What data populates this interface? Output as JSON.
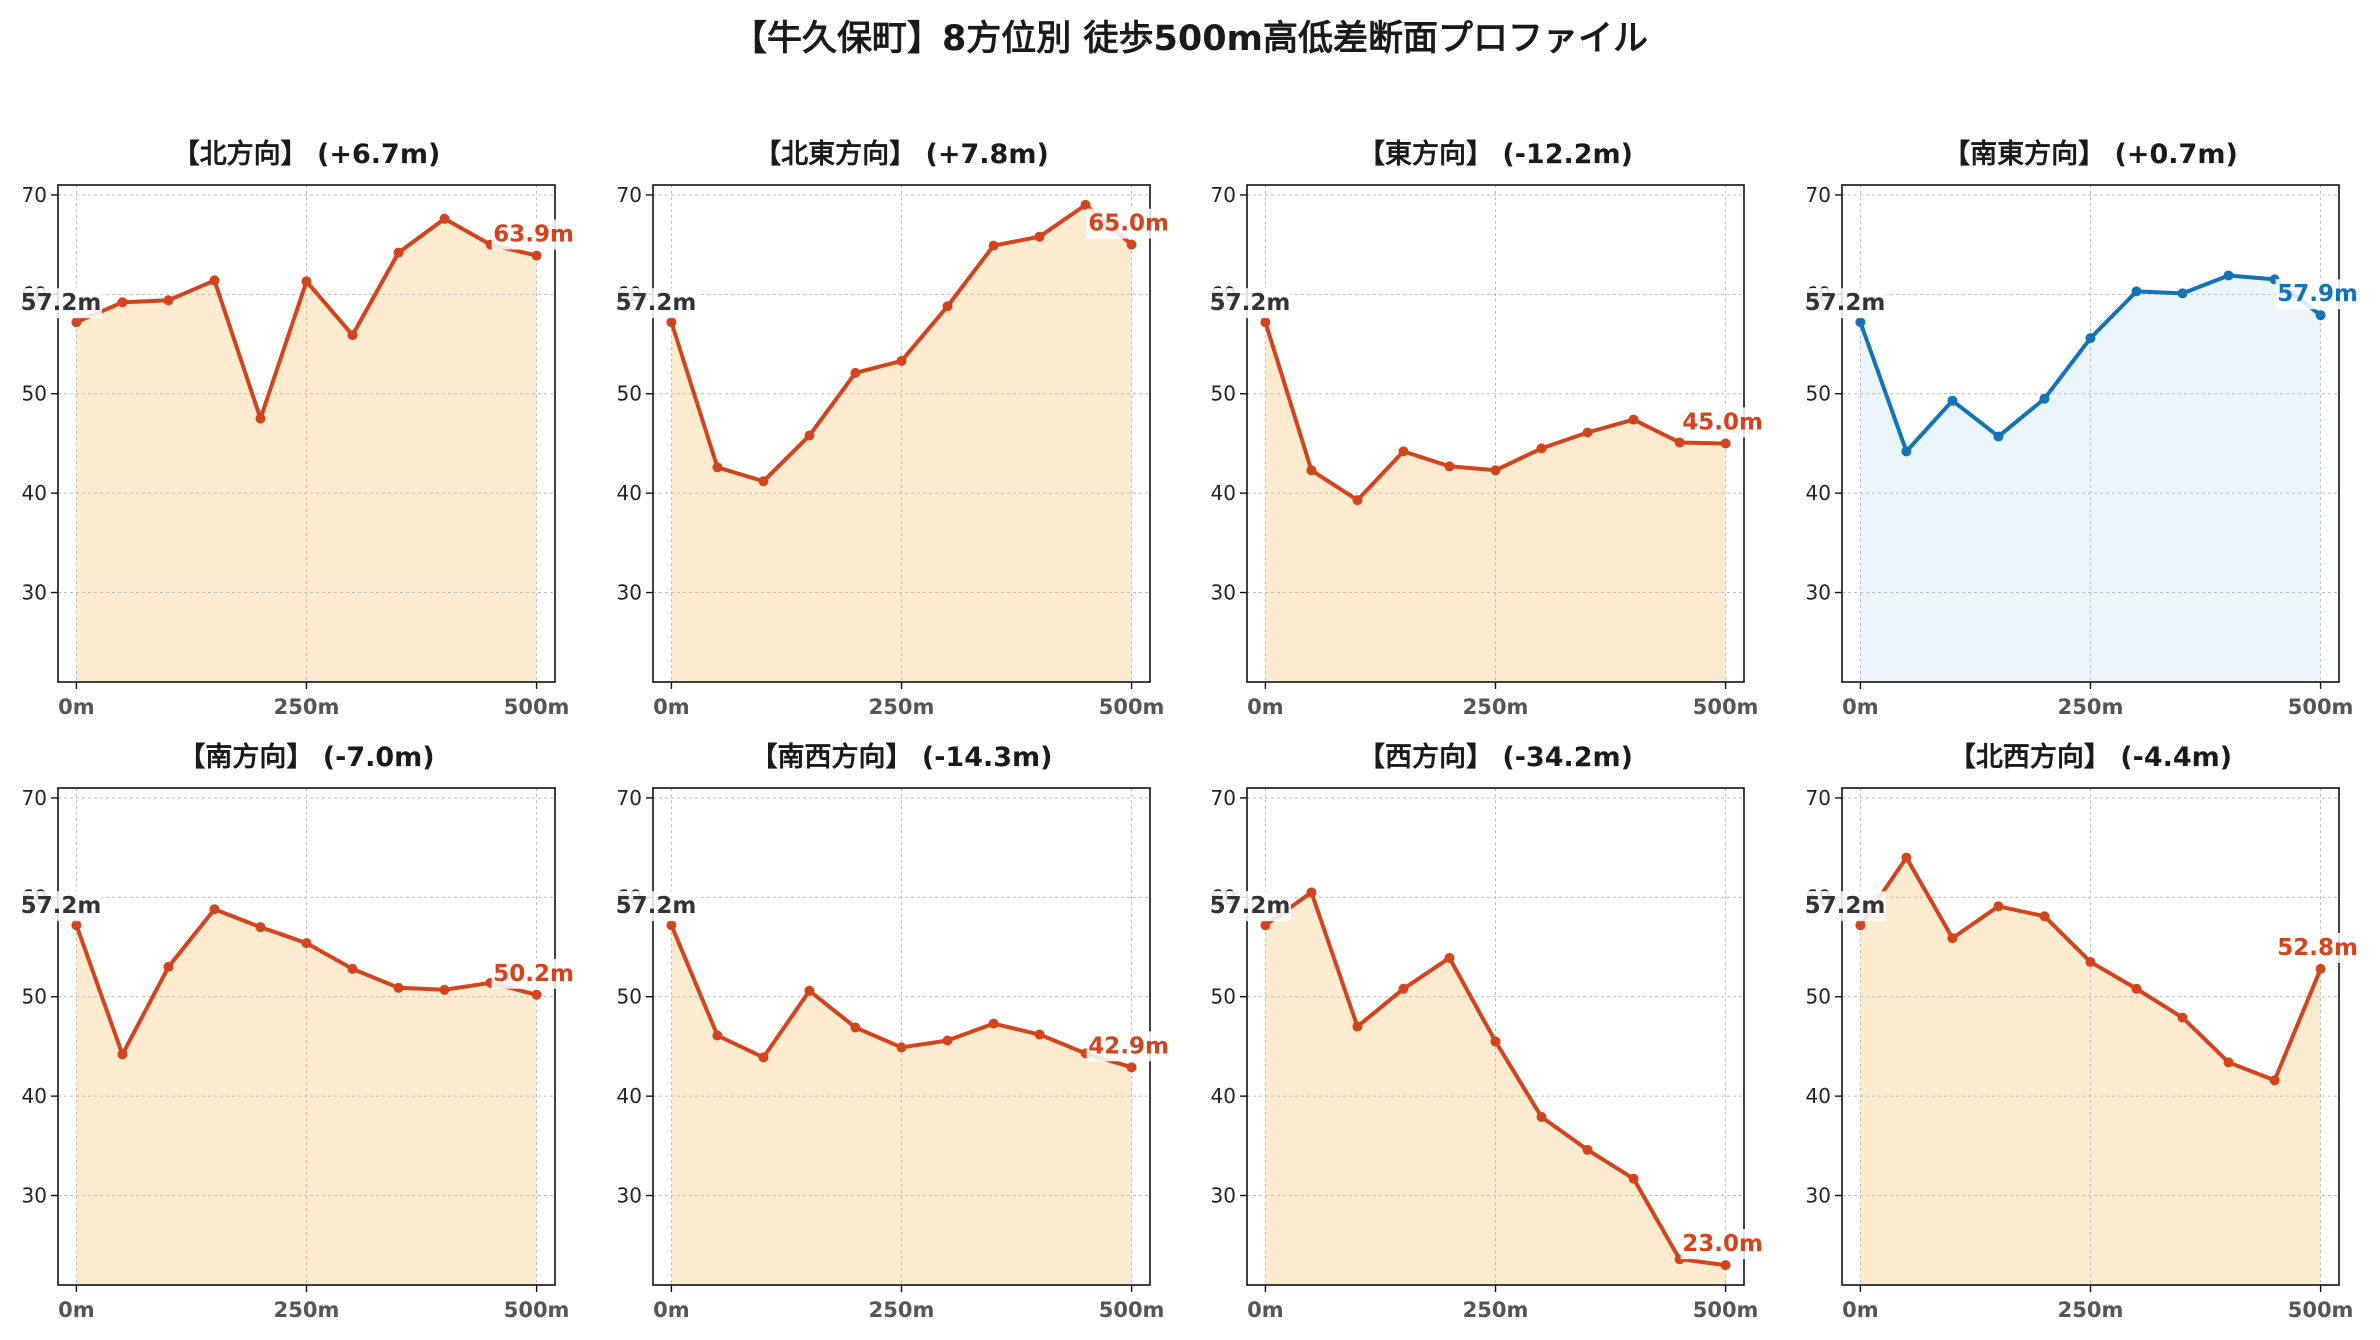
{
  "title": "【牛久保町】8方位別 徒歩500m高低差断面プロファイル",
  "colors": {
    "up_line": "#d4441c",
    "up_fill": "#fdebcf",
    "flat_line": "#1273b6",
    "flat_fill": "#eaf6fc",
    "start_label": "#333333",
    "grid": "#bbbbbb"
  },
  "chart_data": [
    {
      "type": "line",
      "title": "【北方向】 (+6.7m)",
      "x": [
        0,
        50,
        100,
        150,
        200,
        250,
        300,
        350,
        400,
        450,
        500
      ],
      "values": [
        57.2,
        59.2,
        59.4,
        61.4,
        47.5,
        61.3,
        55.9,
        64.2,
        67.6,
        65.0,
        63.9
      ],
      "start_label": "57.2m",
      "end_label": "63.9m",
      "xticks": [
        "0m",
        "250m",
        "500m"
      ],
      "yticks": [
        "30",
        "40",
        "50",
        "60",
        "70"
      ],
      "xlim": [
        -20,
        520
      ],
      "ylim": [
        21,
        71
      ],
      "grid": true,
      "style": "warm"
    },
    {
      "type": "line",
      "title": "【北東方向】 (+7.8m)",
      "x": [
        0,
        50,
        100,
        150,
        200,
        250,
        300,
        350,
        400,
        450,
        500
      ],
      "values": [
        57.2,
        42.6,
        41.2,
        45.8,
        52.1,
        53.3,
        58.8,
        64.9,
        65.8,
        69.0,
        65.0
      ],
      "start_label": "57.2m",
      "end_label": "65.0m",
      "xticks": [
        "0m",
        "250m",
        "500m"
      ],
      "yticks": [
        "30",
        "40",
        "50",
        "60",
        "70"
      ],
      "xlim": [
        -20,
        520
      ],
      "ylim": [
        21,
        71
      ],
      "grid": true,
      "style": "warm"
    },
    {
      "type": "line",
      "title": "【東方向】 (-12.2m)",
      "x": [
        0,
        50,
        100,
        150,
        200,
        250,
        300,
        350,
        400,
        450,
        500
      ],
      "values": [
        57.2,
        42.3,
        39.3,
        44.2,
        42.7,
        42.3,
        44.5,
        46.1,
        47.4,
        45.1,
        45.0
      ],
      "start_label": "57.2m",
      "end_label": "45.0m",
      "xticks": [
        "0m",
        "250m",
        "500m"
      ],
      "yticks": [
        "30",
        "40",
        "50",
        "60",
        "70"
      ],
      "xlim": [
        -20,
        520
      ],
      "ylim": [
        21,
        71
      ],
      "grid": true,
      "style": "warm"
    },
    {
      "type": "line",
      "title": "【南東方向】 (+0.7m)",
      "x": [
        0,
        50,
        100,
        150,
        200,
        250,
        300,
        350,
        400,
        450,
        500
      ],
      "values": [
        57.2,
        44.2,
        49.3,
        45.7,
        49.5,
        55.6,
        60.3,
        60.1,
        61.9,
        61.5,
        57.9
      ],
      "start_label": "57.2m",
      "end_label": "57.9m",
      "xticks": [
        "0m",
        "250m",
        "500m"
      ],
      "yticks": [
        "30",
        "40",
        "50",
        "60",
        "70"
      ],
      "xlim": [
        -20,
        520
      ],
      "ylim": [
        21,
        71
      ],
      "grid": true,
      "style": "flat"
    },
    {
      "type": "line",
      "title": "【南方向】 (-7.0m)",
      "x": [
        0,
        50,
        100,
        150,
        200,
        250,
        300,
        350,
        400,
        450,
        500
      ],
      "values": [
        57.2,
        44.2,
        53.0,
        58.8,
        57.0,
        55.4,
        52.8,
        50.9,
        50.7,
        51.4,
        50.2
      ],
      "start_label": "57.2m",
      "end_label": "50.2m",
      "xticks": [
        "0m",
        "250m",
        "500m"
      ],
      "yticks": [
        "30",
        "40",
        "50",
        "60",
        "70"
      ],
      "xlim": [
        -20,
        520
      ],
      "ylim": [
        21,
        71
      ],
      "grid": true,
      "style": "warm"
    },
    {
      "type": "line",
      "title": "【南西方向】 (-14.3m)",
      "x": [
        0,
        50,
        100,
        150,
        200,
        250,
        300,
        350,
        400,
        450,
        500
      ],
      "values": [
        57.2,
        46.1,
        43.9,
        50.6,
        46.9,
        44.9,
        45.6,
        47.3,
        46.2,
        44.3,
        42.9
      ],
      "start_label": "57.2m",
      "end_label": "42.9m",
      "xticks": [
        "0m",
        "250m",
        "500m"
      ],
      "yticks": [
        "30",
        "40",
        "50",
        "60",
        "70"
      ],
      "xlim": [
        -20,
        520
      ],
      "ylim": [
        21,
        71
      ],
      "grid": true,
      "style": "warm"
    },
    {
      "type": "line",
      "title": "【西方向】 (-34.2m)",
      "x": [
        0,
        50,
        100,
        150,
        200,
        250,
        300,
        350,
        400,
        450,
        500
      ],
      "values": [
        57.2,
        60.5,
        47.0,
        50.8,
        53.9,
        45.5,
        37.9,
        34.6,
        31.7,
        23.6,
        23.0
      ],
      "start_label": "57.2m",
      "end_label": "23.0m",
      "xticks": [
        "0m",
        "250m",
        "500m"
      ],
      "yticks": [
        "30",
        "40",
        "50",
        "60",
        "70"
      ],
      "xlim": [
        -20,
        520
      ],
      "ylim": [
        21,
        71
      ],
      "grid": true,
      "style": "warm"
    },
    {
      "type": "line",
      "title": "【北西方向】 (-4.4m)",
      "x": [
        0,
        50,
        100,
        150,
        200,
        250,
        300,
        350,
        400,
        450,
        500
      ],
      "values": [
        57.2,
        64.0,
        55.9,
        59.1,
        58.1,
        53.5,
        50.8,
        47.9,
        43.4,
        41.6,
        52.8
      ],
      "start_label": "57.2m",
      "end_label": "52.8m",
      "xticks": [
        "0m",
        "250m",
        "500m"
      ],
      "yticks": [
        "30",
        "40",
        "50",
        "60",
        "70"
      ],
      "xlim": [
        -20,
        520
      ],
      "ylim": [
        21,
        71
      ],
      "grid": true,
      "style": "warm"
    }
  ]
}
